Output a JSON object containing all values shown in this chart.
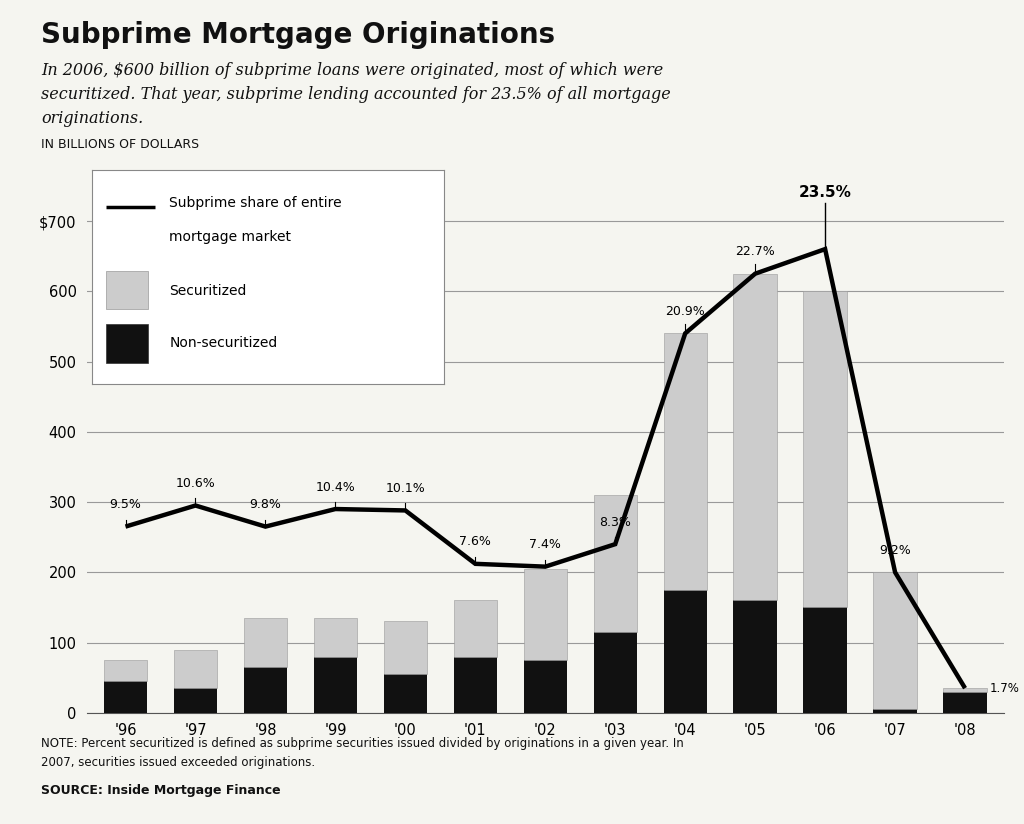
{
  "years": [
    "'96",
    "'97",
    "'98",
    "'99",
    "'00",
    "'01",
    "'02",
    "'03",
    "'04",
    "'05",
    "'06",
    "'07",
    "'08"
  ],
  "non_securitized": [
    45,
    35,
    65,
    80,
    55,
    80,
    75,
    115,
    175,
    160,
    150,
    5,
    30
  ],
  "securitized": [
    30,
    55,
    70,
    55,
    75,
    80,
    130,
    195,
    365,
    465,
    450,
    195,
    5
  ],
  "pct_labels": [
    "9.5%",
    "10.6%",
    "9.8%",
    "10.4%",
    "10.1%",
    "7.6%",
    "7.4%",
    "8.3%",
    "20.9%",
    "22.7%",
    "23.5%",
    "9.2%",
    "1.7%"
  ],
  "pct_bold": [
    false,
    false,
    false,
    false,
    false,
    false,
    false,
    false,
    false,
    false,
    true,
    false,
    false
  ],
  "line_values": [
    265,
    295,
    265,
    290,
    288,
    212,
    208,
    240,
    540,
    625,
    660,
    200,
    35
  ],
  "title": "Subprime Mortgage Originations",
  "subtitle_line1": "In 2006, $600 billion of subprime loans were originated, most of which were",
  "subtitle_line2": "securitized. That year, subprime lending accounted for 23.5% of all mortgage",
  "subtitle_line3": "originations.",
  "ylabel": "IN BILLIONS OF DOLLARS",
  "yticks": [
    0,
    100,
    200,
    300,
    400,
    500,
    600,
    700
  ],
  "ytick_labels": [
    "0",
    "100",
    "200",
    "300",
    "400",
    "500",
    "600",
    "$700"
  ],
  "ylim": [
    0,
    780
  ],
  "note_line1": "NOTE: Percent securitized is defined as subprime securities issued divided by originations in a given year. In",
  "note_line2": "2007, securities issued exceeded originations.",
  "source": "SOURCE: Inside Mortgage Finance",
  "legend_line_label1": "Subprime share of entire",
  "legend_line_label2": "mortgage market",
  "legend_sec_label": "Securitized",
  "legend_nonsec_label": "Non-securitized",
  "bar_color_sec": "#cccccc",
  "bar_color_nonsec": "#111111",
  "line_color": "#000000",
  "bg_color": "#f5f5f0",
  "highlight_year_idx": 10
}
